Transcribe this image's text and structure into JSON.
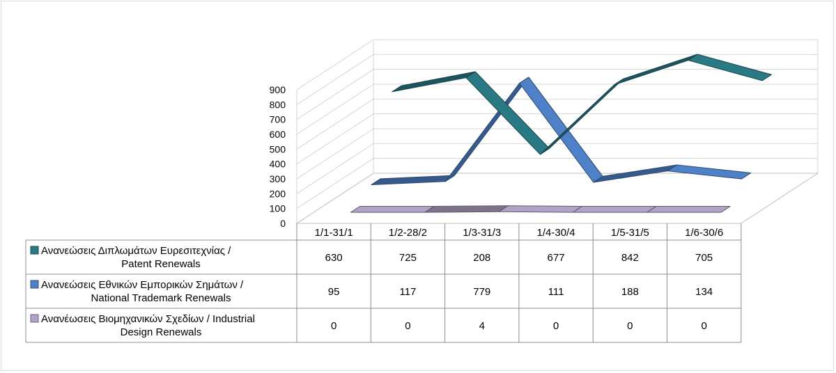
{
  "chart_data": {
    "type": "line",
    "style": "3d-ribbon-with-data-table",
    "categories": [
      "1/1-31/1",
      "1/2-28/2",
      "1/3-31/3",
      "1/4-30/4",
      "1/5-31/5",
      "1/6-30/6"
    ],
    "ylim": [
      0,
      900
    ],
    "yticks": [
      0,
      100,
      200,
      300,
      400,
      500,
      600,
      700,
      800,
      900
    ],
    "grid": true,
    "series": [
      {
        "name_line1": "Ανανεώσεις Διπλωμάτων Ευρεσιτεχνίας  /",
        "name_line2": "Patent Renewals",
        "color": "#2a7a86",
        "values": [
          630,
          725,
          208,
          677,
          842,
          705
        ]
      },
      {
        "name_line1": "Ανανεώσεις Εθνικών Εμπορικών Σημάτων /",
        "name_line2": "National Trademark Renewals",
        "color": "#4f81c8",
        "values": [
          95,
          117,
          779,
          111,
          188,
          134
        ]
      },
      {
        "name_line1": "Ανανέωσεις Βιομηχανικών Σχεδίων / Industrial",
        "name_line2": "Design Renewals",
        "color": "#b3a2c7",
        "values": [
          0,
          0,
          4,
          0,
          0,
          0
        ]
      }
    ]
  }
}
